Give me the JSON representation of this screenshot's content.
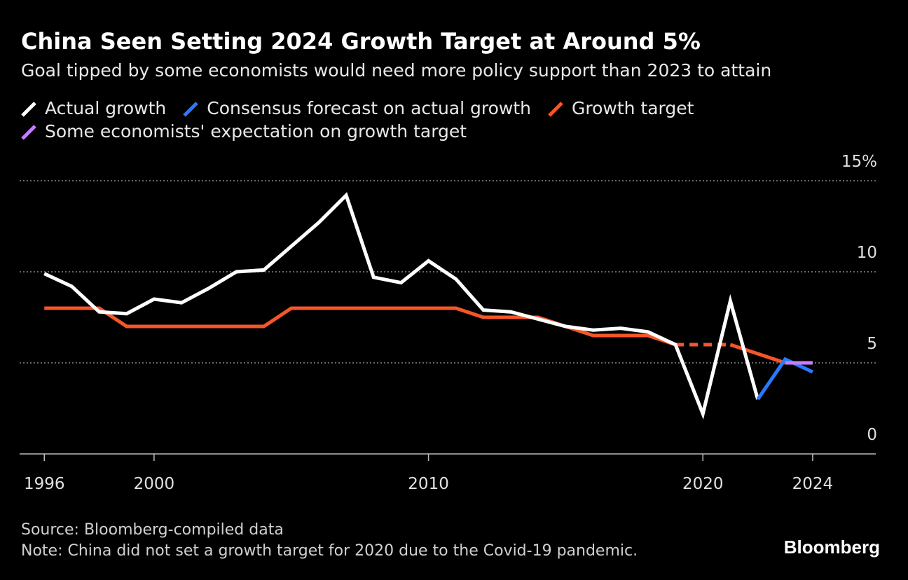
{
  "chart_data": {
    "type": "line",
    "title": "China Seen Setting 2024 Growth Target at Around 5%",
    "subtitle": "Goal tipped by some economists would need more policy support than 2023 to attain",
    "x": [
      1996,
      1997,
      1998,
      1999,
      2000,
      2001,
      2002,
      2003,
      2004,
      2005,
      2006,
      2007,
      2008,
      2009,
      2010,
      2011,
      2012,
      2013,
      2014,
      2015,
      2016,
      2017,
      2018,
      2019,
      2020,
      2021,
      2022,
      2023,
      2024
    ],
    "series": [
      {
        "name": "Actual growth",
        "color": "#ffffff",
        "values": [
          9.9,
          9.2,
          7.8,
          7.7,
          8.5,
          8.3,
          9.1,
          10.0,
          10.1,
          11.4,
          12.7,
          14.2,
          9.7,
          9.4,
          10.6,
          9.6,
          7.9,
          7.8,
          7.4,
          7.0,
          6.8,
          6.9,
          6.7,
          6.0,
          2.2,
          8.4,
          3.0,
          null,
          null
        ]
      },
      {
        "name": "Consensus forecast on actual growth",
        "color": "#2979ff",
        "values": [
          null,
          null,
          null,
          null,
          null,
          null,
          null,
          null,
          null,
          null,
          null,
          null,
          null,
          null,
          null,
          null,
          null,
          null,
          null,
          null,
          null,
          null,
          null,
          null,
          null,
          null,
          3.0,
          5.2,
          4.5
        ]
      },
      {
        "name": "Growth target",
        "color": "#f4562a",
        "values": [
          8,
          8,
          8,
          7,
          7,
          7,
          7,
          7,
          7,
          8,
          8,
          8,
          8,
          8,
          8,
          8,
          7.5,
          7.5,
          7.5,
          7,
          6.5,
          6.5,
          6.5,
          6.0,
          null,
          6.0,
          5.5,
          5.0,
          null
        ]
      },
      {
        "name": "Some economists' expectation on growth target",
        "color": "#c77dff",
        "values": [
          null,
          null,
          null,
          null,
          null,
          null,
          null,
          null,
          null,
          null,
          null,
          null,
          null,
          null,
          null,
          null,
          null,
          null,
          null,
          null,
          null,
          null,
          null,
          null,
          null,
          null,
          null,
          5.0,
          5.0
        ]
      }
    ],
    "xlim": [
      1995.1,
      2026.3
    ],
    "xticks": [
      1996,
      2000,
      2010,
      2020,
      2024
    ],
    "ylim": [
      0,
      15
    ],
    "yticks": [
      0,
      5,
      10,
      {
        "value": 15,
        "label": "15%"
      }
    ],
    "grid": true,
    "source": "Source: Bloomberg-compiled data",
    "note": "Note: China did not set a growth target for 2020 due to the Covid-19 pandemic.",
    "brand": "Bloomberg"
  }
}
